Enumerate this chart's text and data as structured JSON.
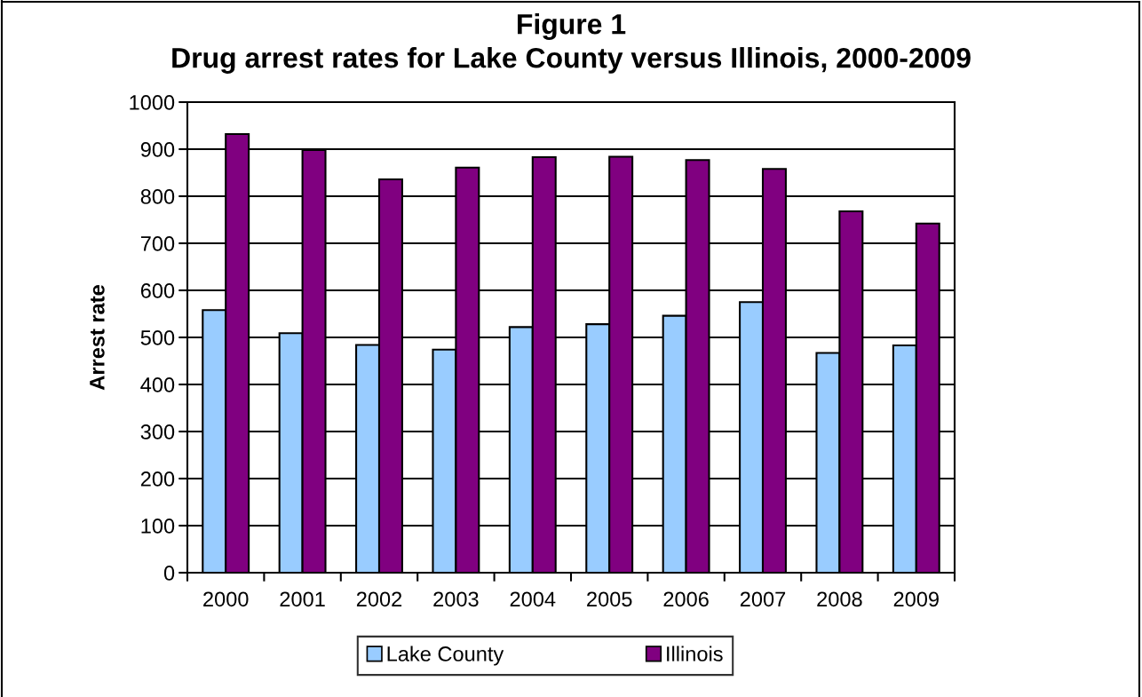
{
  "chart_data": {
    "type": "bar",
    "title": "Figure 1",
    "subtitle": "Drug arrest rates for Lake County versus Illinois, 2000-2009",
    "ylabel": "Arrest rate",
    "categories": [
      "2000",
      "2001",
      "2002",
      "2003",
      "2004",
      "2005",
      "2006",
      "2007",
      "2008",
      "2009"
    ],
    "series": [
      {
        "name": "Lake County",
        "color": "#99ccff",
        "values": [
          558,
          509,
          484,
          474,
          522,
          528,
          546,
          575,
          467,
          483
        ]
      },
      {
        "name": "Illinois",
        "color": "#800080",
        "values": [
          932,
          898,
          836,
          861,
          883,
          884,
          877,
          858,
          768,
          742
        ]
      }
    ],
    "ylim": [
      0,
      1000
    ],
    "yticks": [
      0,
      100,
      200,
      300,
      400,
      500,
      600,
      700,
      800,
      900,
      1000
    ],
    "grid": "y",
    "legend": "bottom"
  }
}
